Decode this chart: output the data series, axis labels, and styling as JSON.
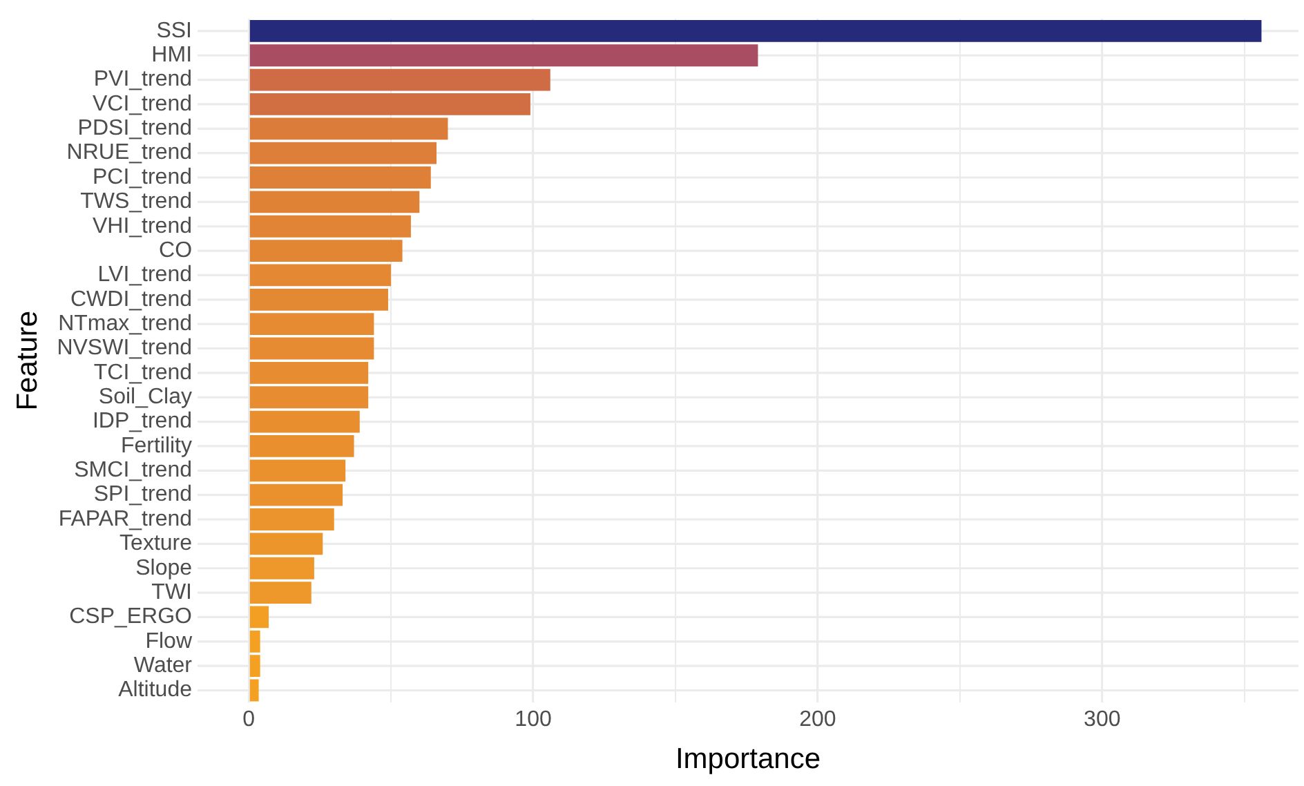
{
  "chart_data": {
    "type": "bar",
    "orientation": "horizontal",
    "xlabel": "Importance",
    "ylabel": "Feature",
    "categories": [
      "SSI",
      "HMI",
      "PVI_trend",
      "VCI_trend",
      "PDSI_trend",
      "NRUE_trend",
      "PCI_trend",
      "TWS_trend",
      "VHI_trend",
      "CO",
      "LVI_trend",
      "CWDI_trend",
      "NTmax_trend",
      "NVSWI_trend",
      "TCI_trend",
      "Soil_Clay",
      "IDP_trend",
      "Fertility",
      "SMCI_trend",
      "SPI_trend",
      "FAPAR_trend",
      "Texture",
      "Slope",
      "TWI",
      "CSP_ERGO",
      "Flow",
      "Water",
      "Altitude"
    ],
    "values": [
      356,
      179,
      106,
      99,
      70,
      66,
      64,
      60,
      57,
      54,
      50,
      49,
      44,
      44,
      42,
      42,
      39,
      37,
      34,
      33,
      30,
      26,
      23,
      22,
      7,
      4,
      4,
      3.5
    ],
    "colors": [
      "#262a7a",
      "#a84d62",
      "#cf6b45",
      "#d26f42",
      "#dc7c3a",
      "#dd7e39",
      "#de8037",
      "#e08236",
      "#e18435",
      "#e28634",
      "#e48833",
      "#e48933",
      "#e68b31",
      "#e68b31",
      "#e78c30",
      "#e78c30",
      "#e88e2f",
      "#e98f2e",
      "#ea912d",
      "#ea912d",
      "#eb932c",
      "#ec952b",
      "#ee972a",
      "#ee972a",
      "#f39f24",
      "#f4a023",
      "#f4a023",
      "#f4a123"
    ],
    "xlim": [
      -18,
      369
    ],
    "xticks": [
      0,
      {
        "value": 50,
        "label": null
      },
      100,
      {
        "value": 150,
        "label": null
      },
      200,
      {
        "value": 250,
        "label": null
      },
      300,
      {
        "value": 350,
        "label": null
      }
    ],
    "grid": true
  }
}
